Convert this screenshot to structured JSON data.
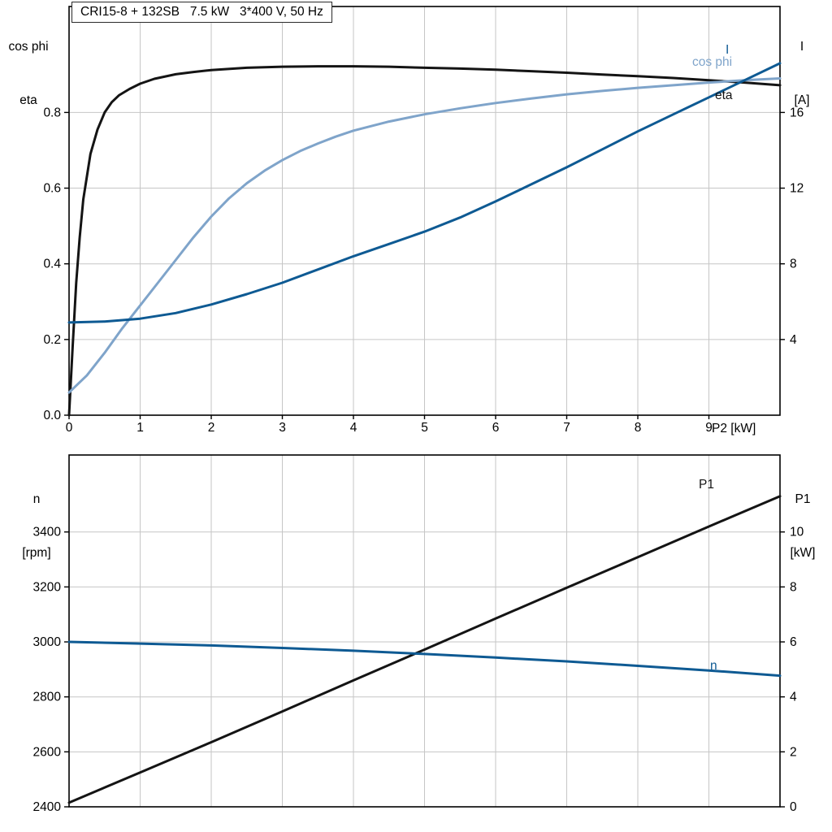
{
  "colors": {
    "black": "#141414",
    "dark_blue": "#0e5a93",
    "light_blue": "#7fa4ca",
    "grid": "#c6c6c6",
    "frame": "#000000"
  },
  "labels": {
    "top_left": {
      "line1": "cos phi",
      "line2": "eta"
    },
    "top_right": {
      "line1": "I",
      "line2": "[A]"
    },
    "bottom_left": {
      "line1": "n",
      "line2": "[rpm]"
    },
    "bottom_right": {
      "line1": "P1",
      "line2": "[kW]"
    },
    "curves": {
      "cos_phi": "cos phi",
      "i": "I",
      "eta": "eta",
      "p1": "P1",
      "n": "n"
    }
  },
  "chart_data": [
    {
      "type": "line",
      "title": "CRI15-8 + 132SB   7.5 kW   3*400 V, 50 Hz",
      "xlabel": "P2 [kW]",
      "ylabel_left": "cos phi / eta",
      "ylabel_right": "I [A]",
      "xlim": [
        0,
        10
      ],
      "ylim_left": [
        0,
        1.08
      ],
      "ylim_right": [
        0,
        21.6
      ],
      "grid": true,
      "x_ticks": [
        0,
        1,
        2,
        3,
        4,
        5,
        6,
        7,
        8,
        9
      ],
      "x_tick_labels": [
        "0",
        "1",
        "2",
        "3",
        "4",
        "5",
        "6",
        "7",
        "8",
        "9"
      ],
      "left_ticks": [
        0,
        0.2,
        0.4,
        0.6,
        0.8
      ],
      "left_tick_labels": [
        "0.0",
        "0.2",
        "0.4",
        "0.6",
        "0.8"
      ],
      "right_ticks": [
        4,
        8,
        12,
        16
      ],
      "right_tick_labels": [
        "4",
        "8",
        "12",
        "16"
      ],
      "series": [
        {
          "name": "eta",
          "axis": "left",
          "color": "black",
          "points": [
            [
              0,
              0
            ],
            [
              0.05,
              0.18
            ],
            [
              0.1,
              0.35
            ],
            [
              0.15,
              0.47
            ],
            [
              0.2,
              0.57
            ],
            [
              0.3,
              0.69
            ],
            [
              0.4,
              0.755
            ],
            [
              0.5,
              0.8
            ],
            [
              0.6,
              0.827
            ],
            [
              0.7,
              0.845
            ],
            [
              0.85,
              0.862
            ],
            [
              1,
              0.876
            ],
            [
              1.2,
              0.889
            ],
            [
              1.5,
              0.901
            ],
            [
              1.75,
              0.907
            ],
            [
              2,
              0.912
            ],
            [
              2.5,
              0.918
            ],
            [
              3,
              0.921
            ],
            [
              3.5,
              0.922
            ],
            [
              4,
              0.922
            ],
            [
              4.5,
              0.921
            ],
            [
              5,
              0.918
            ],
            [
              5.5,
              0.916
            ],
            [
              6,
              0.913
            ],
            [
              6.5,
              0.909
            ],
            [
              7,
              0.905
            ],
            [
              7.5,
              0.9
            ],
            [
              8,
              0.896
            ],
            [
              8.5,
              0.891
            ],
            [
              9,
              0.885
            ],
            [
              9.5,
              0.879
            ],
            [
              10,
              0.872
            ]
          ]
        },
        {
          "name": "cos phi",
          "axis": "left",
          "color": "light_blue",
          "points": [
            [
              0,
              0.06
            ],
            [
              0.25,
              0.105
            ],
            [
              0.5,
              0.165
            ],
            [
              0.75,
              0.23
            ],
            [
              1,
              0.29
            ],
            [
              1.25,
              0.35
            ],
            [
              1.5,
              0.41
            ],
            [
              1.75,
              0.47
            ],
            [
              2,
              0.525
            ],
            [
              2.25,
              0.573
            ],
            [
              2.5,
              0.613
            ],
            [
              2.75,
              0.646
            ],
            [
              3,
              0.674
            ],
            [
              3.25,
              0.698
            ],
            [
              3.5,
              0.718
            ],
            [
              3.75,
              0.736
            ],
            [
              4,
              0.752
            ],
            [
              4.5,
              0.776
            ],
            [
              5,
              0.795
            ],
            [
              5.5,
              0.811
            ],
            [
              6,
              0.825
            ],
            [
              6.5,
              0.837
            ],
            [
              7,
              0.848
            ],
            [
              7.5,
              0.857
            ],
            [
              8,
              0.865
            ],
            [
              8.5,
              0.872
            ],
            [
              9,
              0.879
            ],
            [
              9.5,
              0.885
            ],
            [
              10,
              0.89
            ]
          ]
        },
        {
          "name": "I",
          "axis": "right",
          "color": "dark_blue",
          "points": [
            [
              0,
              4.9
            ],
            [
              0.5,
              4.95
            ],
            [
              1,
              5.1
            ],
            [
              1.5,
              5.4
            ],
            [
              2,
              5.85
            ],
            [
              2.5,
              6.4
            ],
            [
              3,
              7.0
            ],
            [
              3.5,
              7.7
            ],
            [
              4,
              8.4
            ],
            [
              4.5,
              9.05
            ],
            [
              5,
              9.7
            ],
            [
              5.5,
              10.45
            ],
            [
              6,
              11.3
            ],
            [
              6.5,
              12.2
            ],
            [
              7,
              13.1
            ],
            [
              7.5,
              14.05
            ],
            [
              8,
              15.0
            ],
            [
              8.5,
              15.9
            ],
            [
              9,
              16.8
            ],
            [
              9.5,
              17.7
            ],
            [
              10,
              18.6
            ]
          ]
        }
      ]
    },
    {
      "type": "line",
      "title": "",
      "xlabel": "",
      "ylabel_left": "n [rpm]",
      "ylabel_right": "P1 [kW]",
      "xlim": [
        0,
        10
      ],
      "ylim_left": [
        2400,
        3680
      ],
      "ylim_right": [
        0,
        12.8
      ],
      "grid": true,
      "x_ticks": [],
      "x_tick_labels": [],
      "left_ticks": [
        2400,
        2600,
        2800,
        3000,
        3200,
        3400
      ],
      "left_tick_labels": [
        "2400",
        "2600",
        "2800",
        "3000",
        "3200",
        "3400"
      ],
      "right_ticks": [
        0,
        2,
        4,
        6,
        8,
        10
      ],
      "right_tick_labels": [
        "0",
        "2",
        "4",
        "6",
        "8",
        "10"
      ],
      "series": [
        {
          "name": "P1",
          "axis": "right",
          "color": "black",
          "points": [
            [
              0,
              0.15
            ],
            [
              1,
              1.25
            ],
            [
              2,
              2.35
            ],
            [
              3,
              3.47
            ],
            [
              4,
              4.6
            ],
            [
              5,
              5.72
            ],
            [
              6,
              6.85
            ],
            [
              7,
              7.97
            ],
            [
              8,
              9.08
            ],
            [
              9,
              10.2
            ],
            [
              10,
              11.3
            ]
          ]
        },
        {
          "name": "n",
          "axis": "left",
          "color": "dark_blue",
          "points": [
            [
              0,
              3000
            ],
            [
              1,
              2994
            ],
            [
              2,
              2987
            ],
            [
              3,
              2978
            ],
            [
              4,
              2968
            ],
            [
              5,
              2956
            ],
            [
              6,
              2943
            ],
            [
              7,
              2929
            ],
            [
              8,
              2913
            ],
            [
              9,
              2896
            ],
            [
              10,
              2877
            ]
          ]
        }
      ]
    }
  ]
}
